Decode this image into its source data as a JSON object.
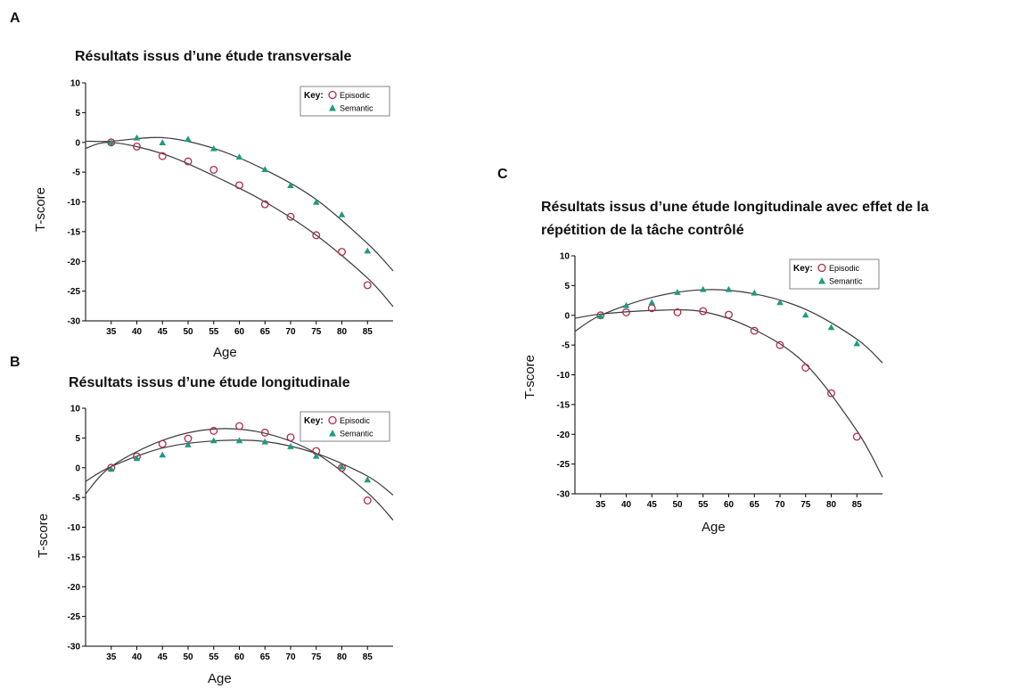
{
  "colors": {
    "episodic": "#b02a4a",
    "semantic": "#1f9a7e",
    "curve": "#3a3a3a",
    "axis": "#000000",
    "legend_box": "#666666"
  },
  "panels": {
    "a": {
      "letter": "A",
      "title": "Résultats issus d’une étude transversale",
      "xlabel": "Age",
      "ylabel": "T-score"
    },
    "b": {
      "letter": "B",
      "title": "Résultats issus d’une étude longitudinale",
      "xlabel": "Age",
      "ylabel": "T-score"
    },
    "c": {
      "letter": "C",
      "title_line1": "Résultats issus d’une étude longitudinale avec effet de la",
      "title_line2": "répétition de la tâche contrôlé",
      "xlabel": "Age",
      "ylabel": "T-score"
    }
  },
  "chart_data": [
    {
      "type": "scatter",
      "title": "Résultats issus d’une étude transversale",
      "xlabel": "Age",
      "ylabel": "T-score",
      "xticks": [
        35,
        40,
        45,
        50,
        55,
        60,
        65,
        70,
        75,
        80,
        85
      ],
      "yticks": [
        10,
        5,
        0,
        -5,
        -10,
        -15,
        -20,
        -25,
        -30
      ],
      "xlim": [
        30,
        90
      ],
      "ylim": [
        -30,
        10
      ],
      "legend": {
        "key": "Key:",
        "position": "top-right",
        "entries": [
          "Episodic",
          "Semantic"
        ]
      },
      "x": [
        35,
        40,
        45,
        50,
        55,
        60,
        65,
        70,
        75,
        80,
        85
      ],
      "series": [
        {
          "name": "Episodic",
          "marker": "open-circle",
          "values": [
            0,
            -0.7,
            -2.3,
            -3.2,
            -4.6,
            -7.2,
            -10.4,
            -12.5,
            -15.6,
            -18.4,
            -24
          ],
          "fit": [
            [
              30,
              -1.0
            ],
            [
              35,
              0
            ],
            [
              45,
              -1.9
            ],
            [
              55,
              -5.6
            ],
            [
              65,
              -10.0
            ],
            [
              75,
              -15.6
            ],
            [
              85,
              -22.8
            ],
            [
              90,
              -27.6
            ]
          ]
        },
        {
          "name": "Semantic",
          "marker": "filled-triangle",
          "values": [
            0,
            0.8,
            0,
            0.6,
            -1.0,
            -2.4,
            -4.5,
            -7.2,
            -10.0,
            -12.1,
            -18.2
          ],
          "fit": [
            [
              30,
              0.2
            ],
            [
              35,
              0.2
            ],
            [
              45,
              0.8
            ],
            [
              55,
              -1.0
            ],
            [
              65,
              -4.6
            ],
            [
              75,
              -9.6
            ],
            [
              85,
              -17.0
            ],
            [
              90,
              -21.6
            ]
          ]
        }
      ]
    },
    {
      "type": "scatter",
      "title": "Résultats issus d’une étude longitudinale",
      "xlabel": "Age",
      "ylabel": "T-score",
      "xticks": [
        35,
        40,
        45,
        50,
        55,
        60,
        65,
        70,
        75,
        80,
        85
      ],
      "yticks": [
        10,
        5,
        0,
        -5,
        -10,
        -15,
        -20,
        -25,
        -30
      ],
      "xlim": [
        30,
        90
      ],
      "ylim": [
        -30,
        10
      ],
      "legend": {
        "key": "Key:",
        "position": "top-right",
        "entries": [
          "Episodic",
          "Semantic"
        ]
      },
      "x": [
        35,
        40,
        45,
        50,
        55,
        60,
        65,
        70,
        75,
        80,
        85
      ],
      "series": [
        {
          "name": "Episodic",
          "marker": "open-circle",
          "values": [
            0,
            1.9,
            4.0,
            4.9,
            6.2,
            7.0,
            5.9,
            5.1,
            2.8,
            0.0,
            -5.5
          ],
          "fit": [
            [
              30,
              -4.4
            ],
            [
              35,
              0.2
            ],
            [
              45,
              4.6
            ],
            [
              55,
              6.5
            ],
            [
              65,
              5.8
            ],
            [
              75,
              2.4
            ],
            [
              85,
              -4.2
            ],
            [
              90,
              -8.8
            ]
          ]
        },
        {
          "name": "Semantic",
          "marker": "filled-triangle",
          "values": [
            -0.2,
            1.6,
            2.2,
            3.9,
            4.6,
            4.6,
            4.4,
            3.6,
            2.0,
            0.2,
            -2.0
          ],
          "fit": [
            [
              30,
              -2.3
            ],
            [
              35,
              0.2
            ],
            [
              45,
              3.3
            ],
            [
              55,
              4.5
            ],
            [
              65,
              4.4
            ],
            [
              75,
              2.4
            ],
            [
              85,
              -1.4
            ],
            [
              90,
              -4.6
            ]
          ]
        }
      ]
    },
    {
      "type": "scatter",
      "title": "Résultats issus d’une étude longitudinale avec effet de la répétition de la tâche contrôlé",
      "xlabel": "Age",
      "ylabel": "T-score",
      "xticks": [
        35,
        40,
        45,
        50,
        55,
        60,
        65,
        70,
        75,
        80,
        85
      ],
      "yticks": [
        10,
        5,
        0,
        -5,
        -10,
        -15,
        -20,
        -25,
        -30
      ],
      "xlim": [
        30,
        90
      ],
      "ylim": [
        -30,
        10
      ],
      "legend": {
        "key": "Key:",
        "position": "top-right",
        "entries": [
          "Episodic",
          "Semantic"
        ]
      },
      "x": [
        35,
        40,
        45,
        50,
        55,
        60,
        65,
        70,
        75,
        80,
        85
      ],
      "series": [
        {
          "name": "Episodic",
          "marker": "open-circle",
          "values": [
            0,
            0.5,
            1.2,
            0.5,
            0.7,
            0.1,
            -2.6,
            -5.0,
            -8.8,
            -13.1,
            -20.4
          ],
          "fit": [
            [
              30,
              -0.5
            ],
            [
              35,
              0.2
            ],
            [
              45,
              0.8
            ],
            [
              55,
              0.6
            ],
            [
              65,
              -2.4
            ],
            [
              75,
              -8.2
            ],
            [
              85,
              -19.4
            ],
            [
              90,
              -27.2
            ]
          ]
        },
        {
          "name": "Semantic",
          "marker": "filled-triangle",
          "values": [
            -0.1,
            1.7,
            2.2,
            3.9,
            4.4,
            4.4,
            3.8,
            2.2,
            0.1,
            -2.0,
            -4.7
          ],
          "fit": [
            [
              30,
              -2.7
            ],
            [
              35,
              0.0
            ],
            [
              45,
              3.0
            ],
            [
              55,
              4.3
            ],
            [
              65,
              3.6
            ],
            [
              75,
              1.0
            ],
            [
              85,
              -4.0
            ],
            [
              90,
              -8.0
            ]
          ]
        }
      ]
    }
  ]
}
